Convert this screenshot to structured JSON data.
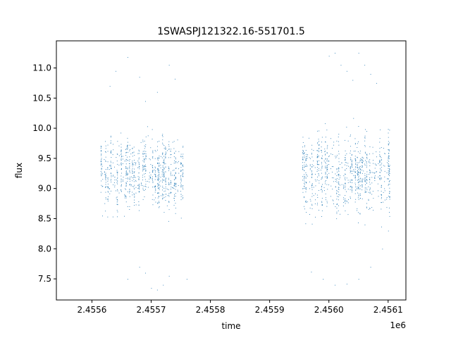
{
  "chart_data": {
    "type": "scatter",
    "title": "1SWASPJ121322.16-551701.5",
    "xlabel": "time",
    "ylabel": "flux",
    "x_offset_label": "1e6",
    "xlim": [
      2.45554,
      2.45613
    ],
    "ylim": [
      7.15,
      11.45
    ],
    "x_ticks": [
      {
        "value": 2.4556,
        "label": "2.4556"
      },
      {
        "value": 2.4557,
        "label": "2.4557"
      },
      {
        "value": 2.4558,
        "label": "2.4558"
      },
      {
        "value": 2.4559,
        "label": "2.4559"
      },
      {
        "value": 2.456,
        "label": "2.4560"
      },
      {
        "value": 2.4561,
        "label": "2.4561"
      }
    ],
    "y_ticks": [
      {
        "value": 7.5,
        "label": "7.5"
      },
      {
        "value": 8.0,
        "label": "8.0"
      },
      {
        "value": 8.5,
        "label": "8.5"
      },
      {
        "value": 9.0,
        "label": "9.0"
      },
      {
        "value": 9.5,
        "label": "9.5"
      },
      {
        "value": 10.0,
        "label": "10.0"
      },
      {
        "value": 10.5,
        "label": "10.5"
      },
      {
        "value": 11.0,
        "label": "11.0"
      }
    ],
    "grid": false,
    "marker_color": "#1f77b4",
    "series": [
      {
        "segments": [
          {
            "x_start": 2.455615,
            "x_end": 2.455755,
            "y_center": 9.25,
            "y_spread": 0.45
          },
          {
            "x_start": 2.455955,
            "x_end": 2.456105,
            "y_center": 9.25,
            "y_spread": 0.5
          }
        ],
        "points": [
          [
            2.45564,
            10.95
          ],
          [
            2.45566,
            11.18
          ],
          [
            2.45568,
            10.85
          ],
          [
            2.45573,
            11.05
          ],
          [
            2.45574,
            10.82
          ],
          [
            2.45563,
            10.7
          ],
          [
            2.45569,
            10.45
          ],
          [
            2.45571,
            10.6
          ],
          [
            2.45566,
            7.5
          ],
          [
            2.45569,
            7.6
          ],
          [
            2.4557,
            7.35
          ],
          [
            2.45571,
            7.32
          ],
          [
            2.45572,
            7.4
          ],
          [
            2.45568,
            7.7
          ],
          [
            2.45573,
            7.55
          ],
          [
            2.45576,
            7.5
          ],
          [
            2.456,
            11.2
          ],
          [
            2.45601,
            11.25
          ],
          [
            2.45602,
            11.05
          ],
          [
            2.45603,
            10.95
          ],
          [
            2.45605,
            11.25
          ],
          [
            2.45606,
            11.05
          ],
          [
            2.45604,
            10.8
          ],
          [
            2.45607,
            10.9
          ],
          [
            2.45608,
            10.75
          ],
          [
            2.45597,
            7.62
          ],
          [
            2.45599,
            7.5
          ],
          [
            2.45601,
            7.4
          ],
          [
            2.45603,
            7.42
          ],
          [
            2.45605,
            7.5
          ],
          [
            2.45607,
            7.7
          ],
          [
            2.45609,
            8.0
          ],
          [
            2.4561,
            8.3
          ]
        ]
      }
    ]
  }
}
